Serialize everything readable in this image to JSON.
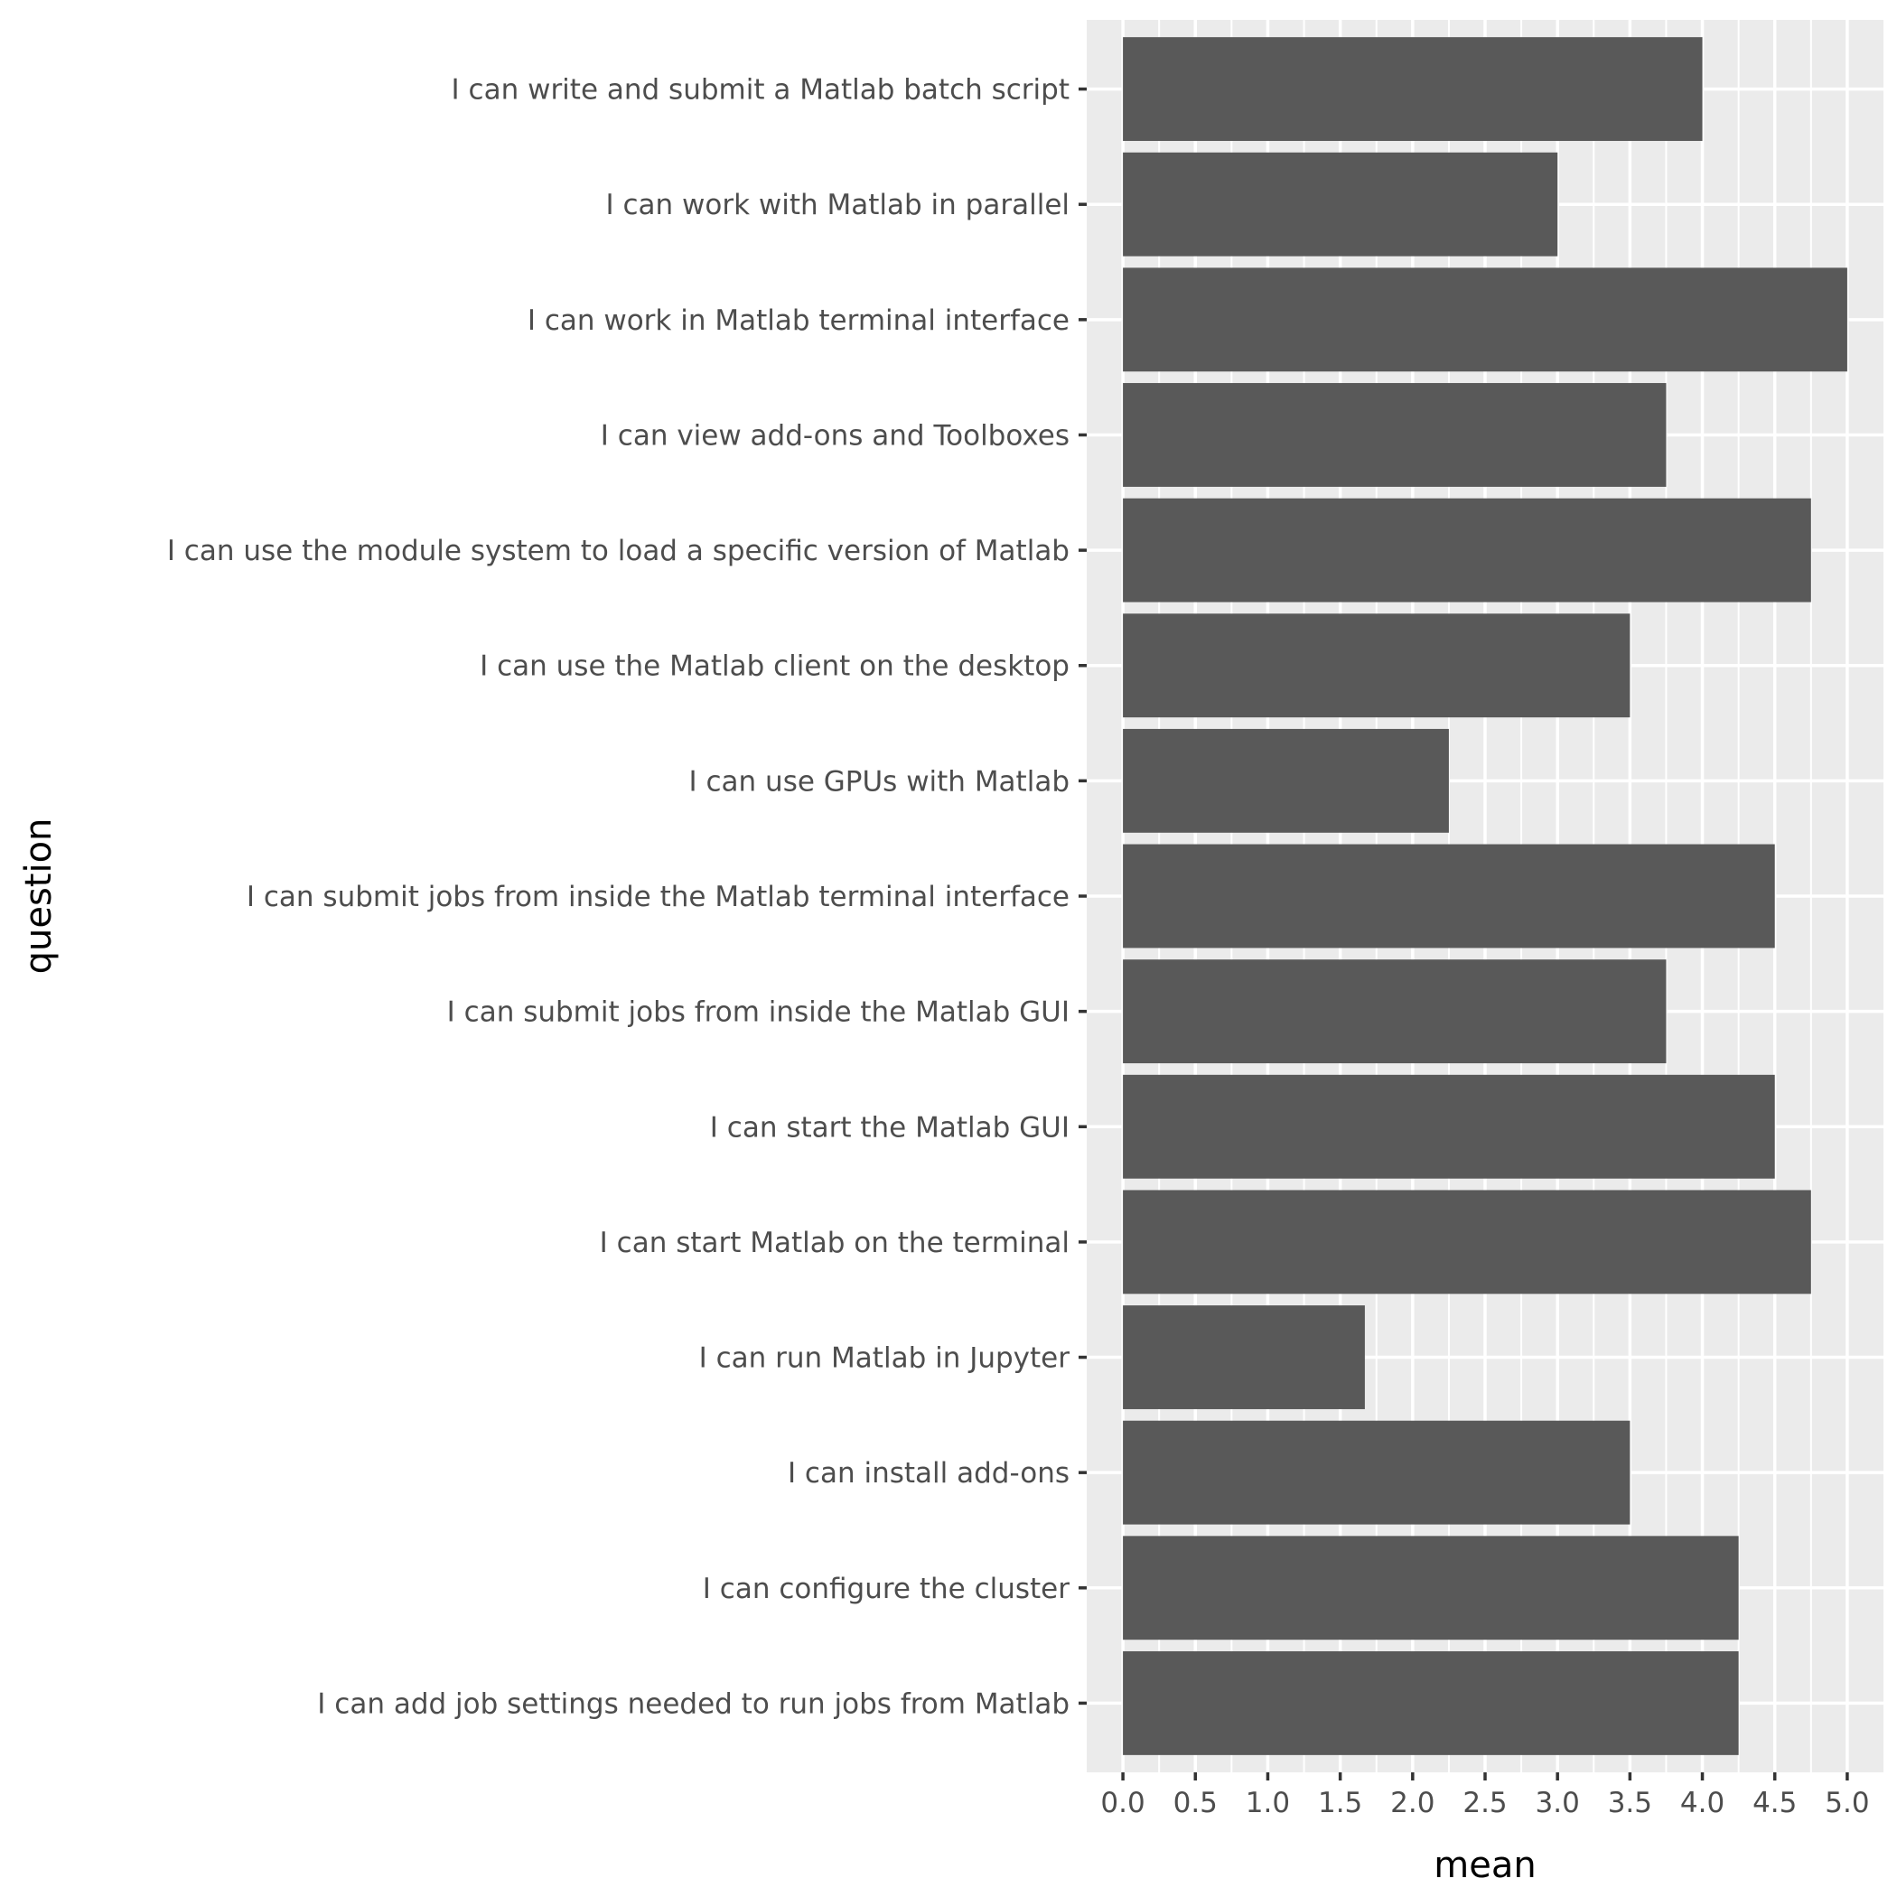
{
  "chart_data": {
    "type": "bar",
    "orientation": "horizontal",
    "xlabel": "mean",
    "ylabel": "question",
    "xlim": [
      -0.25,
      5.25
    ],
    "x_ticks": [
      "0.0",
      "0.5",
      "1.0",
      "1.5",
      "2.0",
      "2.5",
      "3.0",
      "3.5",
      "4.0",
      "4.5",
      "5.0"
    ],
    "grid": true,
    "colors": {
      "panel": "#ebebeb",
      "bar": "#595959",
      "grid": "#ffffff"
    },
    "categories": [
      "I can write and submit a Matlab batch script",
      "I can work with Matlab in parallel",
      "I can work in Matlab terminal interface",
      "I can view add-ons and Toolboxes",
      "I can use the module system to load a specific version of Matlab",
      "I can use the Matlab client on the desktop",
      "I can use GPUs with Matlab",
      "I can submit jobs from inside the Matlab terminal interface",
      "I can submit jobs from inside the Matlab GUI",
      "I can start the Matlab GUI",
      "I can start Matlab on the terminal",
      "I can run Matlab in Jupyter",
      "I can install add-ons",
      "I can configure the cluster",
      "I can add job settings needed to run jobs from Matlab"
    ],
    "values": [
      4.0,
      3.0,
      5.0,
      3.75,
      4.75,
      3.5,
      2.25,
      4.5,
      3.75,
      4.5,
      4.75,
      1.67,
      3.5,
      4.25,
      4.25
    ]
  }
}
